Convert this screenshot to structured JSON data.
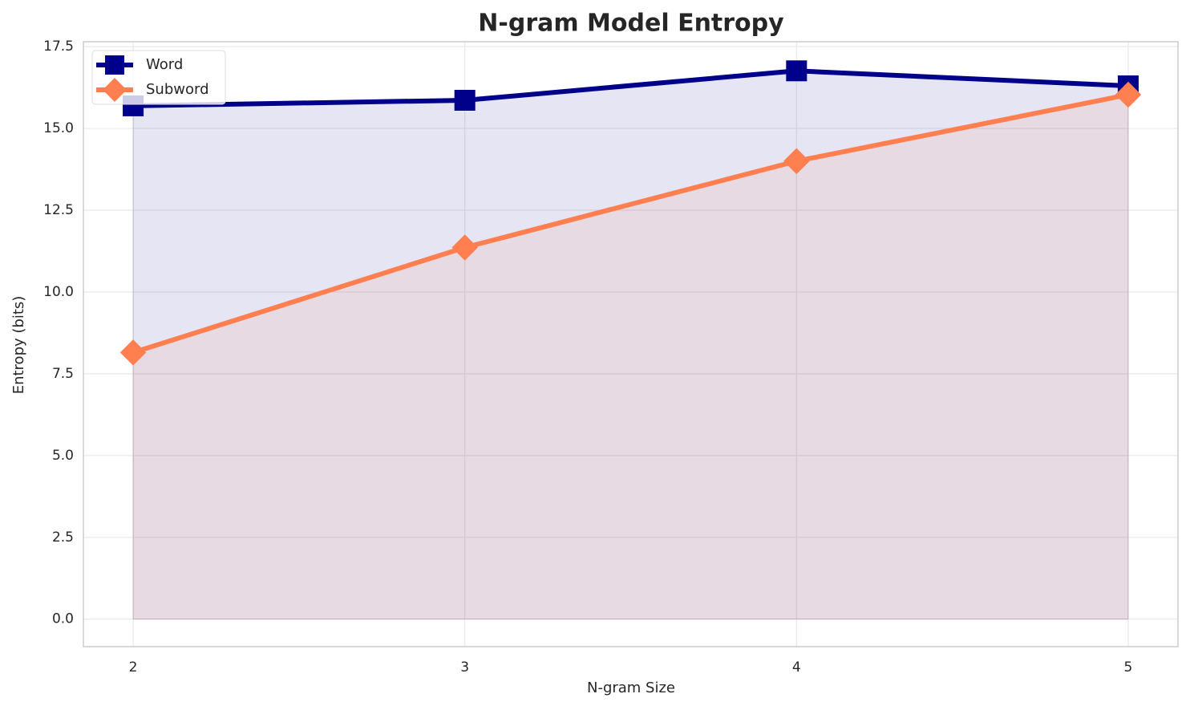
{
  "chart_data": {
    "type": "line",
    "title": "N-gram Model Entropy",
    "xlabel": "N-gram Size",
    "ylabel": "Entropy (bits)",
    "x": [
      2,
      3,
      4,
      5
    ],
    "series": [
      {
        "name": "Word",
        "color": "#00008b",
        "marker": "square",
        "fill": true,
        "values": [
          15.69,
          15.86,
          16.76,
          16.3
        ]
      },
      {
        "name": "Subword",
        "color": "#ff7f50",
        "marker": "diamond",
        "fill": true,
        "values": [
          8.15,
          11.36,
          14.0,
          16.03
        ]
      }
    ],
    "xlim": [
      1.85,
      5.15
    ],
    "ylim": [
      -0.84,
      17.65
    ],
    "xticks": [
      2,
      3,
      4,
      5
    ],
    "yticks": [
      {
        "value": 0,
        "label": "0.0"
      },
      2.5,
      {
        "value": 5,
        "label": "5.0"
      },
      7.5,
      {
        "value": 10,
        "label": "10.0"
      },
      12.5,
      {
        "value": 15,
        "label": "15.0"
      },
      17.5
    ],
    "grid": true,
    "legend": "upper left"
  }
}
